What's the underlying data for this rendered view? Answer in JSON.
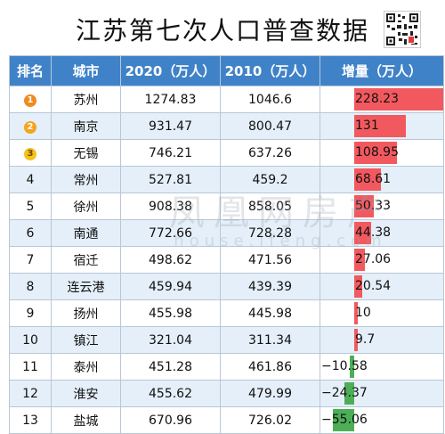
{
  "title": "江苏第七次人口普查数据",
  "headers": {
    "rank": "排名",
    "city": "城市",
    "y2020": "2020（万人）",
    "y2010": "2010（万人）",
    "increase": "增量（万人）"
  },
  "rows": [
    {
      "rank": "1",
      "city": "苏州",
      "y2020": "1274.83",
      "y2010": "1046.6",
      "increase": "228.23",
      "value": 228.23
    },
    {
      "rank": "2",
      "city": "南京",
      "y2020": "931.47",
      "y2010": "800.47",
      "increase": "131",
      "value": 131
    },
    {
      "rank": "3",
      "city": "无锡",
      "y2020": "746.21",
      "y2010": "637.26",
      "increase": "108.95",
      "value": 108.95
    },
    {
      "rank": "4",
      "city": "常州",
      "y2020": "527.81",
      "y2010": "459.2",
      "increase": "68.61",
      "value": 68.61
    },
    {
      "rank": "5",
      "city": "徐州",
      "y2020": "908.38",
      "y2010": "858.05",
      "increase": "50.33",
      "value": 50.33
    },
    {
      "rank": "6",
      "city": "南通",
      "y2020": "772.66",
      "y2010": "728.28",
      "increase": "44.38",
      "value": 44.38
    },
    {
      "rank": "7",
      "city": "宿迁",
      "y2020": "498.62",
      "y2010": "471.56",
      "increase": "27.06",
      "value": 27.06
    },
    {
      "rank": "8",
      "city": "连云港",
      "y2020": "459.94",
      "y2010": "439.39",
      "increase": "20.54",
      "value": 20.54
    },
    {
      "rank": "9",
      "city": "扬州",
      "y2020": "455.98",
      "y2010": "445.98",
      "increase": "10",
      "value": 10
    },
    {
      "rank": "10",
      "city": "镇江",
      "y2020": "321.04",
      "y2010": "311.34",
      "increase": "9.7",
      "value": 9.7
    },
    {
      "rank": "11",
      "city": "泰州",
      "y2020": "451.28",
      "y2010": "461.86",
      "increase": "−10.58",
      "value": -10.58
    },
    {
      "rank": "12",
      "city": "淮安",
      "y2020": "455.62",
      "y2010": "479.99",
      "increase": "−24.37",
      "value": -24.37
    },
    {
      "rank": "13",
      "city": "盐城",
      "y2020": "670.96",
      "y2010": "726.02",
      "increase": "−55.06",
      "value": -55.06
    }
  ],
  "colors": {
    "header": "#3f82c8",
    "positive": "#f2595f",
    "negative": "#4caf57",
    "stripe": "#e4eff9"
  },
  "watermark": {
    "cn": "凤凰网房产",
    "en": "house.ifeng.com"
  },
  "qr_icon": "qr-code-icon"
}
